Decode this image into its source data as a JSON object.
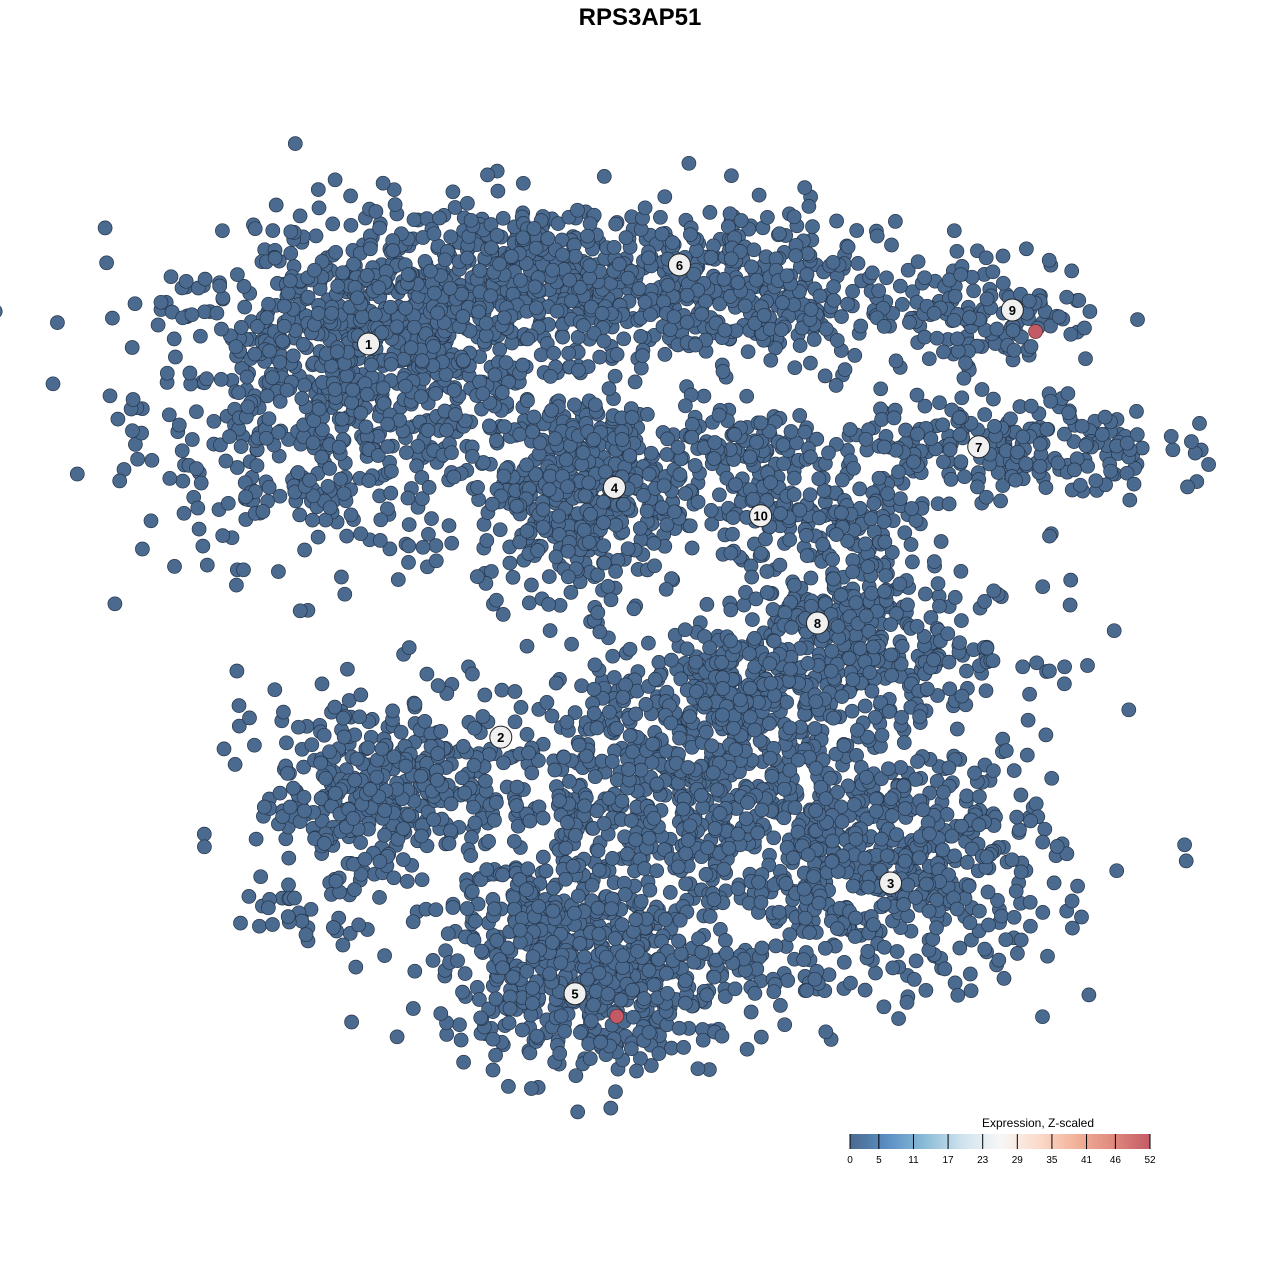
{
  "chart_data": {
    "type": "scatter",
    "title": "RPS3AP51",
    "xlabel": "",
    "ylabel": "",
    "grid": false,
    "point_color_low": "#4a6a8f",
    "point_color_high": "#c45a66",
    "clusters": [
      {
        "label": "1",
        "x": -23.4,
        "y": 26.2
      },
      {
        "label": "2",
        "x": -12.0,
        "y": -8.6
      },
      {
        "label": "3",
        "x": 21.6,
        "y": -21.5
      },
      {
        "label": "4",
        "x": -2.2,
        "y": 13.5
      },
      {
        "label": "5",
        "x": -5.6,
        "y": -31.3
      },
      {
        "label": "6",
        "x": 3.4,
        "y": 33.2
      },
      {
        "label": "7",
        "x": 29.2,
        "y": 17.1
      },
      {
        "label": "8",
        "x": 15.3,
        "y": 1.5
      },
      {
        "label": "9",
        "x": 32.1,
        "y": 29.2
      },
      {
        "label": "10",
        "x": 10.4,
        "y": 11.0
      }
    ],
    "expressing_cells": [
      {
        "x": 34.1,
        "y": 27.3,
        "value": 52
      },
      {
        "x": -2.0,
        "y": -33.3,
        "value": 52
      }
    ],
    "legend": {
      "title": "Expression, Z-scaled",
      "placement": "bottom-right",
      "ticks": [
        "0",
        "5",
        "11",
        "17",
        "23",
        "29",
        "35",
        "41",
        "46",
        "52"
      ],
      "range": [
        0,
        52
      ],
      "colors": [
        "#4a6a8f",
        "#5b8fc4",
        "#8bbcd8",
        "#cfe3ee",
        "#f7f7f7",
        "#fbdccc",
        "#f3b39a",
        "#e08a7e",
        "#c45a66"
      ]
    }
  }
}
